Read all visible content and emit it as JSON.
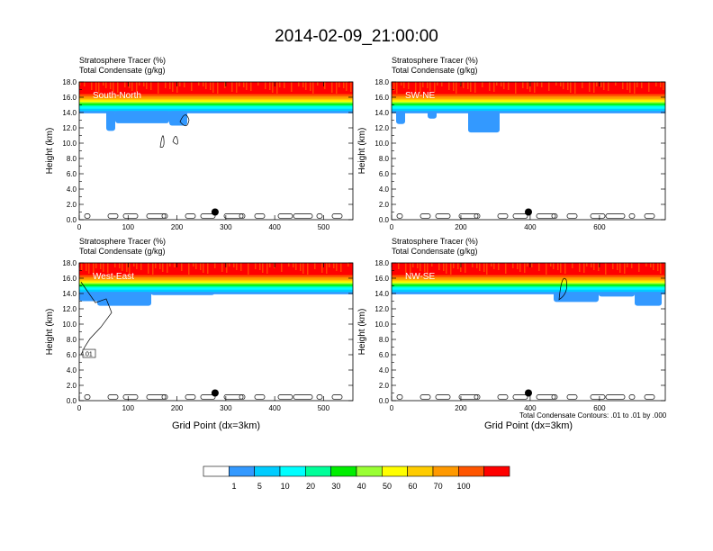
{
  "figure_title": "2014-02-09_21:00:00",
  "footnote": "Total Condensate Contours: .01 to .01 by .000",
  "colorbar": {
    "labels": [
      "1",
      "5",
      "10",
      "20",
      "30",
      "40",
      "50",
      "60",
      "70",
      "100"
    ],
    "colors": [
      "#ffffff",
      "#3399ff",
      "#00ccff",
      "#00ffff",
      "#00ff99",
      "#00ee00",
      "#99ff33",
      "#ffff00",
      "#ffcc00",
      "#ff9900",
      "#ff5500",
      "#ff0000"
    ]
  },
  "chart_data": [
    {
      "type": "heatmap",
      "header_line1": "Stratosphere Tracer   (%)",
      "header_line2": "Total Condensate   (g/kg)",
      "section_label": "South-North",
      "ylabel": "Height (km)",
      "xlabel": "",
      "xlim": [
        0,
        560
      ],
      "ylim": [
        0,
        18
      ],
      "xticks": [
        0,
        100,
        200,
        300,
        400,
        500
      ],
      "yticks": [
        "0.0",
        "2.0",
        "4.0",
        "6.0",
        "8.0",
        "10.0",
        "12.0",
        "14.0",
        "16.0",
        "18.0"
      ],
      "marker_x": 278,
      "marker_y": 1.0,
      "contour_label": ""
    },
    {
      "type": "heatmap",
      "header_line1": "Stratosphere Tracer   (%)",
      "header_line2": "Total Condensate   (g/kg)",
      "section_label": "SW-NE",
      "ylabel": "Height (km)",
      "xlabel": "",
      "xlim": [
        0,
        790
      ],
      "ylim": [
        0,
        18
      ],
      "xticks": [
        0,
        200,
        400,
        600
      ],
      "yticks": [
        "0.0",
        "2.0",
        "4.0",
        "6.0",
        "8.0",
        "10.0",
        "12.0",
        "14.0",
        "16.0",
        "18.0"
      ],
      "marker_x": 395,
      "marker_y": 1.0,
      "contour_label": ""
    },
    {
      "type": "heatmap",
      "header_line1": "Stratosphere Tracer   (%)",
      "header_line2": "Total Condensate   (g/kg)",
      "section_label": "West-East",
      "ylabel": "Height (km)",
      "xlabel": "Grid Point (dx=3km)",
      "xlim": [
        0,
        560
      ],
      "ylim": [
        0,
        18
      ],
      "xticks": [
        0,
        100,
        200,
        300,
        400,
        500
      ],
      "yticks": [
        "0.0",
        "2.0",
        "4.0",
        "6.0",
        "8.0",
        "10.0",
        "12.0",
        "14.0",
        "16.0",
        "18.0"
      ],
      "marker_x": 278,
      "marker_y": 1.0,
      "contour_label": ".01"
    },
    {
      "type": "heatmap",
      "header_line1": "Stratosphere Tracer   (%)",
      "header_line2": "Total Condensate   (g/kg)",
      "section_label": "NW-SE",
      "ylabel": "Height (km)",
      "xlabel": "Grid Point (dx=3km)",
      "xlim": [
        0,
        790
      ],
      "ylim": [
        0,
        18
      ],
      "xticks": [
        0,
        200,
        400,
        600
      ],
      "yticks": [
        "0.0",
        "2.0",
        "4.0",
        "6.0",
        "8.0",
        "10.0",
        "12.0",
        "14.0",
        "16.0",
        "18.0"
      ],
      "marker_x": 395,
      "marker_y": 1.0,
      "contour_label": ""
    }
  ]
}
